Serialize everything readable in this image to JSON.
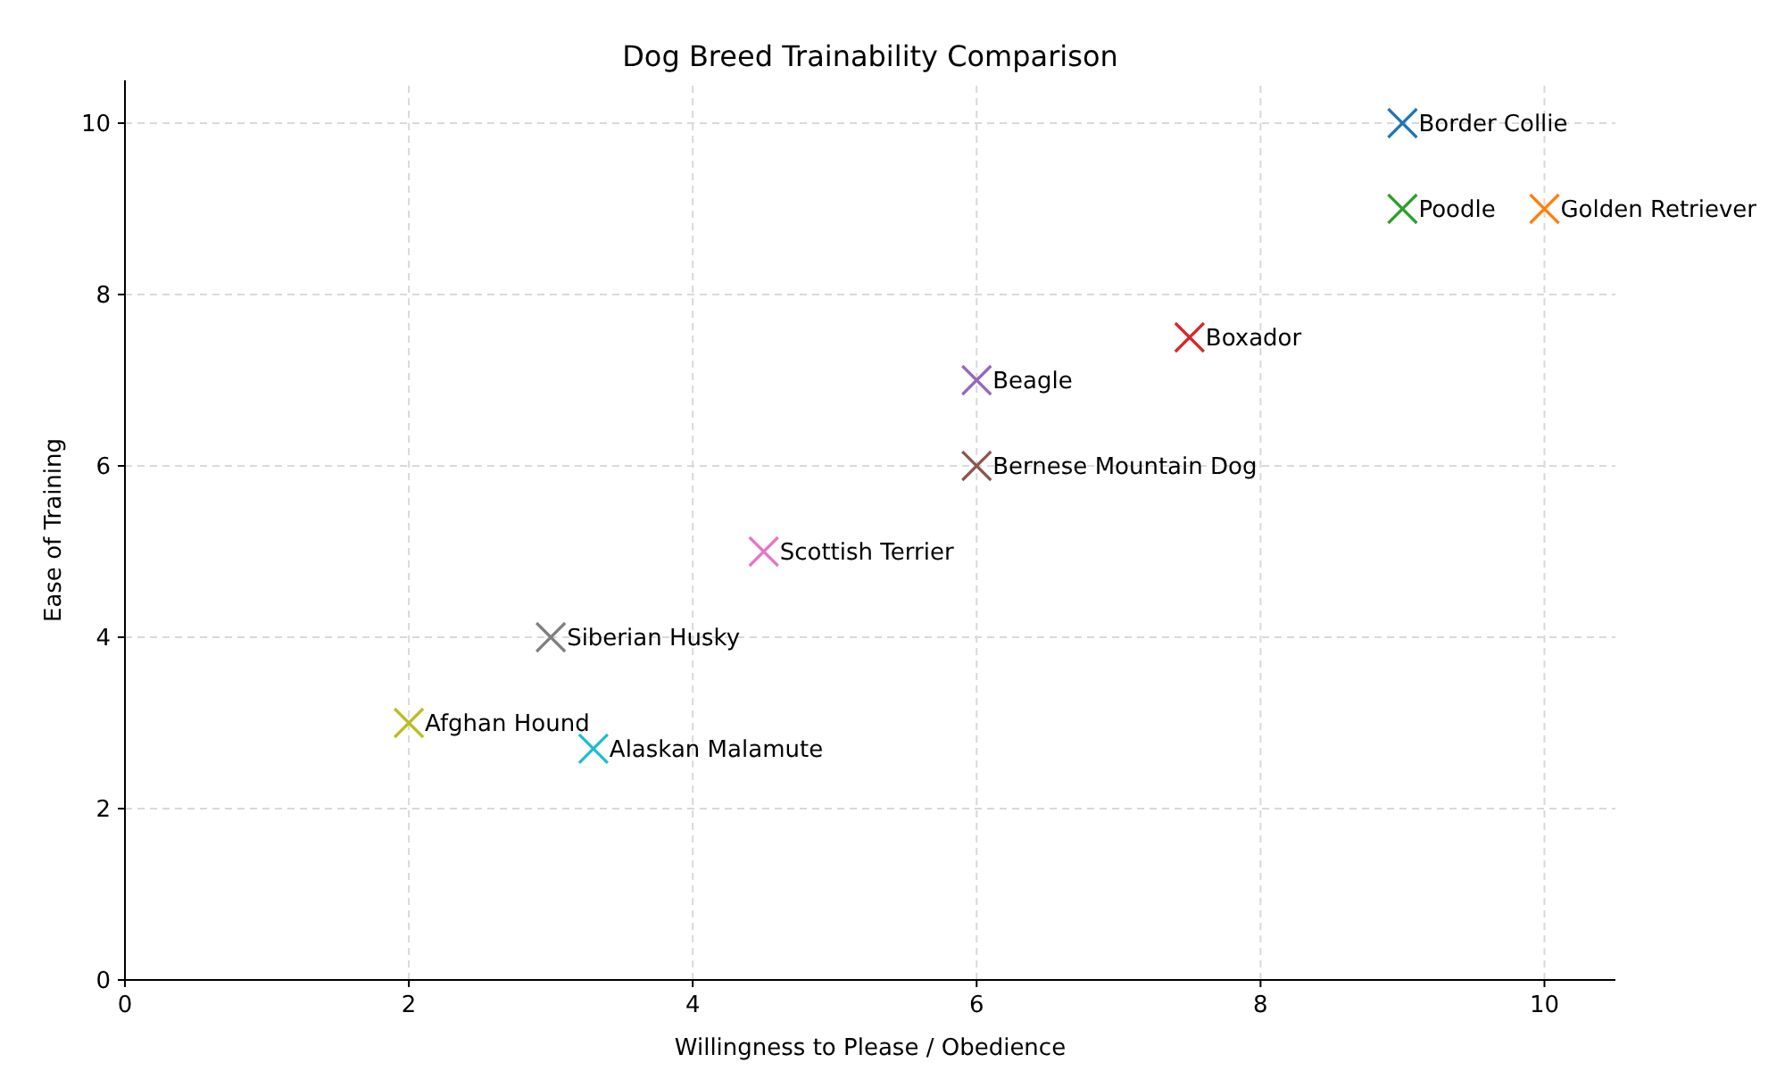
{
  "chart_data": {
    "type": "scatter",
    "title": "Dog Breed Trainability Comparison",
    "xlabel": "Willingness to Please / Obedience",
    "ylabel": "Ease of Training",
    "xlim": [
      0,
      10.5
    ],
    "xticks": [
      0,
      2,
      4,
      6,
      8,
      10
    ],
    "ylim": [
      0,
      10.5
    ],
    "yticks": [
      0,
      2,
      4,
      6,
      8,
      10
    ],
    "grid": true,
    "marker": "cross",
    "series": [
      {
        "name": "Border Collie",
        "color": "#1f77b4",
        "x": [
          9
        ],
        "values": [
          10
        ]
      },
      {
        "name": "Golden Retriever",
        "color": "#ff7f0e",
        "x": [
          10
        ],
        "values": [
          9
        ]
      },
      {
        "name": "Poodle",
        "color": "#2ca02c",
        "x": [
          9
        ],
        "values": [
          9
        ]
      },
      {
        "name": "Boxador",
        "color": "#d62728",
        "x": [
          7.5
        ],
        "values": [
          7.5
        ]
      },
      {
        "name": "Beagle",
        "color": "#9467bd",
        "x": [
          6
        ],
        "values": [
          7
        ]
      },
      {
        "name": "Bernese Mountain Dog",
        "color": "#8c564b",
        "x": [
          6
        ],
        "values": [
          6
        ]
      },
      {
        "name": "Scottish Terrier",
        "color": "#e377c2",
        "x": [
          4.5
        ],
        "values": [
          5
        ]
      },
      {
        "name": "Siberian Husky",
        "color": "#7f7f7f",
        "x": [
          3
        ],
        "values": [
          4
        ]
      },
      {
        "name": "Afghan Hound",
        "color": "#bcbd22",
        "x": [
          2
        ],
        "values": [
          3
        ]
      },
      {
        "name": "Alaskan Malamute",
        "color": "#17becf",
        "x": [
          3.3
        ],
        "values": [
          2.7
        ]
      }
    ]
  }
}
